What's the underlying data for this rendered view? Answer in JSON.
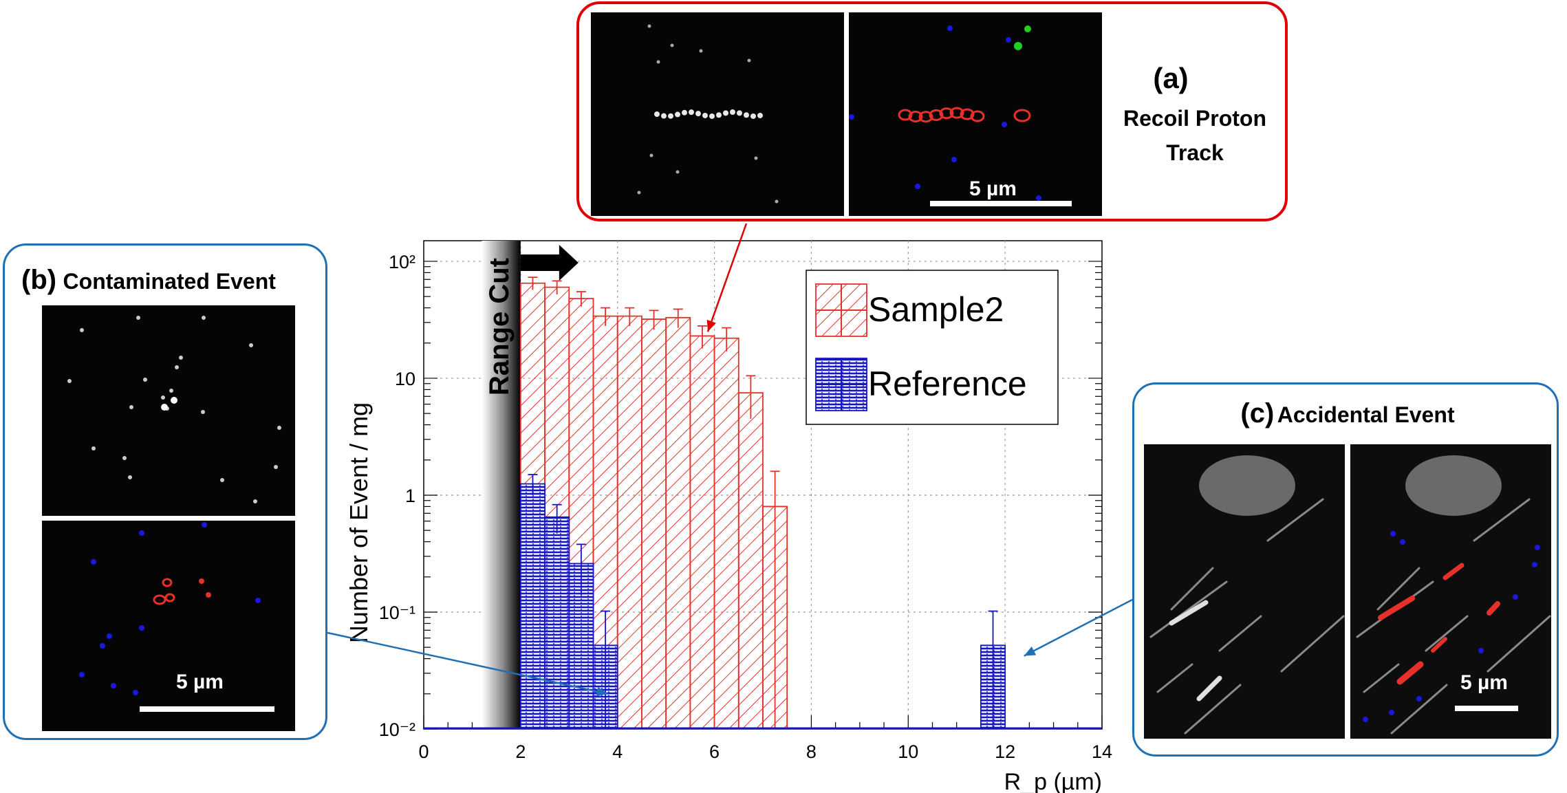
{
  "chart_data": {
    "type": "bar",
    "xlabel": "R_p (µm)",
    "ylabel": "Number of Event / mg",
    "xlim": [
      0,
      14
    ],
    "ylim": [
      0.01,
      150
    ],
    "y_scale": "log",
    "grid": true,
    "legend_position": "top-right",
    "x_ticks": [
      "0",
      "2",
      "4",
      "6",
      "8",
      "10",
      "12",
      "14"
    ],
    "y_ticks": [
      "10⁻²",
      "10⁻¹",
      "1",
      "10",
      "10²"
    ],
    "bin_width": 0.5,
    "series": [
      {
        "name": "Sample2",
        "color": "#e8302a",
        "bins_start": [
          2,
          2.5,
          3,
          3.5,
          4,
          4.5,
          5,
          5.5,
          6,
          6.5,
          7
        ],
        "values": [
          65,
          60,
          48,
          34,
          34,
          32,
          33,
          23,
          22,
          7.5,
          0.8
        ],
        "errors": [
          8,
          8,
          7,
          6,
          6,
          6,
          6,
          5,
          5,
          3,
          0.8
        ]
      },
      {
        "name": "Reference",
        "color": "#1515c8",
        "bins_start": [
          2,
          2.5,
          3,
          3.5,
          11.5
        ],
        "values": [
          1.25,
          0.65,
          0.26,
          0.052,
          0.052
        ],
        "errors": [
          0.25,
          0.18,
          0.12,
          0.05,
          0.05
        ]
      }
    ],
    "annotations": {
      "range_cut": "Range Cut",
      "range_cut_x": 2
    }
  },
  "panels": {
    "a": {
      "label": "(a)",
      "title_line1": "Recoil Proton",
      "title_line2": "Track",
      "scale": "5 µm",
      "arrow_to_x": 5.75,
      "arrow_to_y": 25
    },
    "b": {
      "label": "(b)",
      "title": "Contaminated Event",
      "scale": "5 µm",
      "arrow_to_x": 3.8,
      "arrow_to_y": 0.017
    },
    "c": {
      "label": "(c)",
      "title": "Accidental Event",
      "scale": "5 µm",
      "arrow_to_x": 12.25,
      "arrow_to_y": 0.04
    }
  },
  "colors": {
    "panel_a_border": "#e00000",
    "panel_bc_border": "#1f6fb5",
    "track_red": "#e8302a",
    "grain_blue": "#1818e0",
    "grain_green": "#20d020"
  }
}
